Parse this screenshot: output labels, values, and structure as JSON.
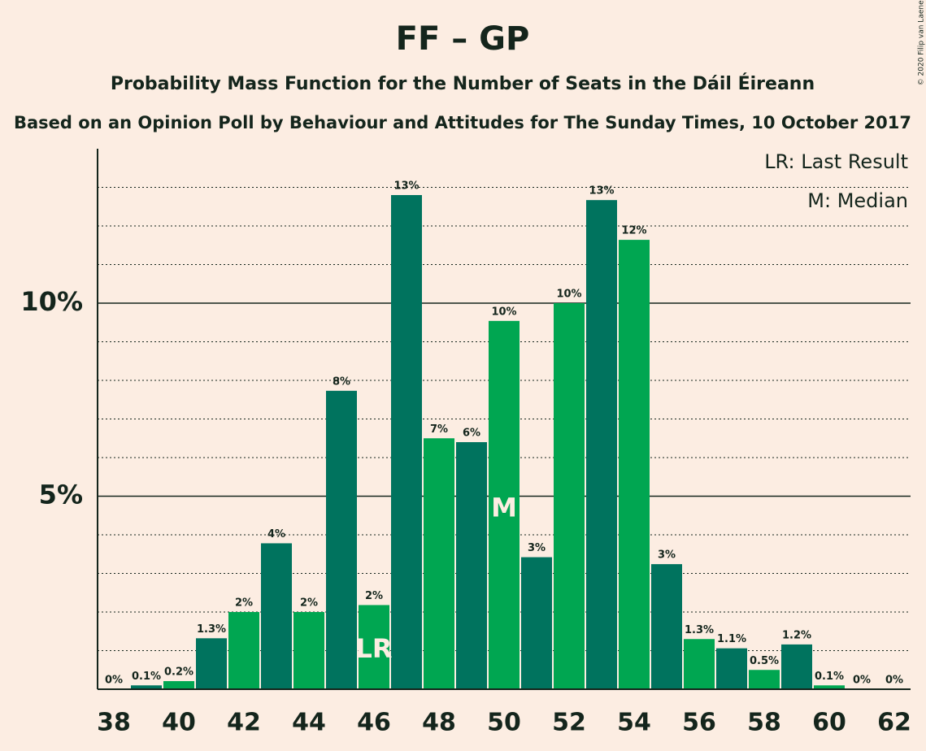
{
  "chart_data": {
    "type": "bar",
    "title": "FF – GP",
    "subtitle": "Probability Mass Function for the Number of Seats in the Dáil Éireann",
    "caption": "Based on an Opinion Poll by Behaviour and Attitudes for The Sunday Times, 10 October 2017",
    "copyright": "© 2020 Filip van Laenen",
    "x": [
      38,
      39,
      40,
      41,
      42,
      43,
      44,
      45,
      46,
      47,
      48,
      49,
      50,
      51,
      52,
      53,
      54,
      55,
      56,
      57,
      58,
      59,
      60,
      61,
      62
    ],
    "values": [
      0,
      0.1,
      0.21,
      1.32,
      2.0,
      3.78,
      2.0,
      7.73,
      2.18,
      12.8,
      6.5,
      6.4,
      9.54,
      3.42,
      10.0,
      12.67,
      11.64,
      3.24,
      1.3,
      1.06,
      0.5,
      1.16,
      0.1,
      0,
      0
    ],
    "value_labels": [
      "0%",
      "0.1%",
      "0.2%",
      "1.3%",
      "2%",
      "4%",
      "2%",
      "8%",
      "2%",
      "13%",
      "7%",
      "6%",
      "10%",
      "3%",
      "10%",
      "13%",
      "12%",
      "3%",
      "1.3%",
      "1.1%",
      "0.5%",
      "1.2%",
      "0.1%",
      "0%",
      "0%"
    ],
    "colors": [
      "#00a651",
      "#00735e",
      "#00a651",
      "#00735e",
      "#00a651",
      "#00735e",
      "#00a651",
      "#00735e",
      "#00a651",
      "#00735e",
      "#00a651",
      "#00735e",
      "#00a651",
      "#00735e",
      "#00a651",
      "#00735e",
      "#00a651",
      "#00735e",
      "#00a651",
      "#00735e",
      "#00a651",
      "#00735e",
      "#00a651",
      "#00735e",
      "#00a651"
    ],
    "xlim": [
      37.5,
      62.5
    ],
    "xticks": [
      38,
      40,
      42,
      44,
      46,
      48,
      50,
      52,
      54,
      56,
      58,
      60,
      62
    ],
    "ylim": [
      0,
      14
    ],
    "yticks": [
      {
        "value": 5,
        "label": "5%"
      },
      {
        "value": 10,
        "label": "10%"
      }
    ],
    "minor_yticks": [
      1,
      2,
      3,
      4,
      6,
      7,
      8,
      9,
      11,
      12,
      13
    ],
    "grid": true,
    "annotations": [
      {
        "x": 46,
        "label": "LR"
      },
      {
        "x": 50,
        "label": "M"
      }
    ],
    "legend": [
      "LR: Last Result",
      "M: Median"
    ]
  }
}
